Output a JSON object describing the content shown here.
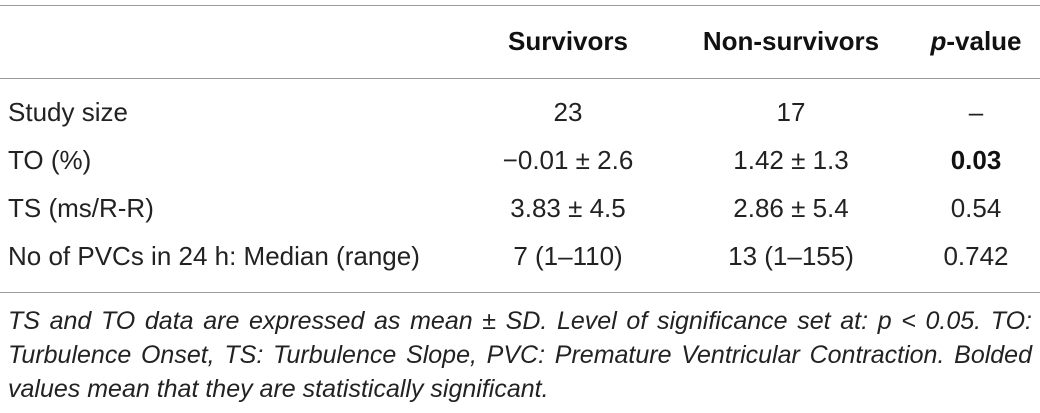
{
  "table": {
    "headers": {
      "col1": "Survivors",
      "col2": "Non-survivors",
      "col3_italic": "p",
      "col3_rest": "-value"
    },
    "rows": [
      {
        "label": "Study size",
        "survivors": "23",
        "non_survivors": "17",
        "p_value": "–",
        "p_bold": false
      },
      {
        "label": "TO (%)",
        "survivors": "−0.01 ± 2.6",
        "non_survivors": "1.42 ± 1.3",
        "p_value": "0.03",
        "p_bold": true
      },
      {
        "label": "TS (ms/R-R)",
        "survivors": "3.83 ± 4.5",
        "non_survivors": "2.86 ± 5.4",
        "p_value": "0.54",
        "p_bold": false
      },
      {
        "label": "No of PVCs in 24 h: Median (range)",
        "survivors": "7 (1–110)",
        "non_survivors": "13 (1–155)",
        "p_value": "0.742",
        "p_bold": false
      }
    ]
  },
  "footnote": "TS and TO data are expressed as mean ± SD. Level of significance set at: p < 0.05. TO: Turbulence Onset, TS: Turbulence Slope, PVC: Premature Ventricular Contraction. Bolded values mean that they are statistically significant."
}
